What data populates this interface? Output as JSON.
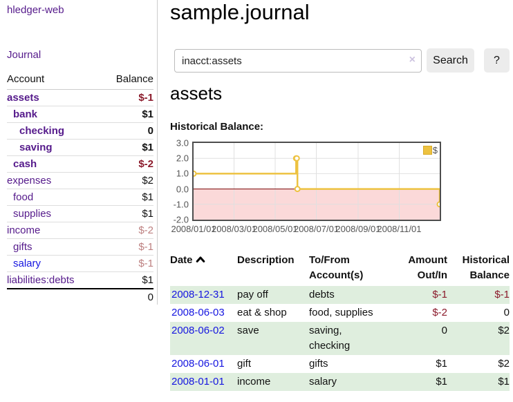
{
  "sidebar": {
    "app_title": "hledger-web",
    "journal_label": "Journal",
    "accounts_table": {
      "headers": {
        "account": "Account",
        "balance": "Balance"
      },
      "rows": [
        {
          "name": "assets",
          "balance": "$-1",
          "depth": 0,
          "bold": true,
          "balance_class": "neg-strong",
          "link_color": "purple"
        },
        {
          "name": "bank",
          "balance": "$1",
          "depth": 1,
          "bold": true,
          "balance_class": "",
          "link_color": "purple"
        },
        {
          "name": "checking",
          "balance": "0",
          "depth": 2,
          "bold": true,
          "balance_class": "",
          "link_color": "purple"
        },
        {
          "name": "saving",
          "balance": "$1",
          "depth": 2,
          "bold": true,
          "balance_class": "",
          "link_color": "purple"
        },
        {
          "name": "cash",
          "balance": "$-2",
          "depth": 1,
          "bold": true,
          "balance_class": "neg-strong",
          "link_color": "purple"
        },
        {
          "name": "expenses",
          "balance": "$2",
          "depth": 0,
          "bold": false,
          "balance_class": "",
          "link_color": "purple"
        },
        {
          "name": "food",
          "balance": "$1",
          "depth": 1,
          "bold": false,
          "balance_class": "",
          "link_color": "purple"
        },
        {
          "name": "supplies",
          "balance": "$1",
          "depth": 1,
          "bold": false,
          "balance_class": "",
          "link_color": "purple"
        },
        {
          "name": "income",
          "balance": "$-2",
          "depth": 0,
          "bold": false,
          "balance_class": "neg-muted",
          "link_color": "purple"
        },
        {
          "name": "gifts",
          "balance": "$-1",
          "depth": 1,
          "bold": false,
          "balance_class": "neg-muted",
          "link_color": "purple"
        },
        {
          "name": "salary",
          "balance": "$-1",
          "depth": 1,
          "bold": false,
          "balance_class": "neg-muted",
          "link_color": "blue"
        },
        {
          "name": "liabilities:debts",
          "balance": "$1",
          "depth": 0,
          "bold": false,
          "balance_class": "",
          "link_color": "purple"
        }
      ],
      "total": "0"
    }
  },
  "main": {
    "title": "sample.journal",
    "search": {
      "value": "inacct:assets",
      "clear_icon": "×",
      "button_label": "Search",
      "help_label": "?"
    },
    "account_heading": "assets",
    "chart_label": "Historical Balance:"
  },
  "chart_data": {
    "type": "line",
    "step": true,
    "title": "Historical Balance of assets",
    "series": [
      {
        "name": "$",
        "color": "#edc240",
        "points": [
          [
            "2008-01-01",
            1
          ],
          [
            "2008-06-01",
            2
          ],
          [
            "2008-06-02",
            2
          ],
          [
            "2008-06-03",
            0
          ],
          [
            "2008-12-31",
            -1
          ]
        ]
      }
    ],
    "x_domain": [
      "2008-01-01",
      "2008-12-31"
    ],
    "ylim": [
      -2,
      3
    ],
    "y_ticks": [
      "3.0",
      "2.0",
      "1.0",
      "0.0",
      "-1.0",
      "-2.0"
    ],
    "x_ticks": [
      "2008/01/01",
      "2008/03/01",
      "2008/05/01",
      "2008/07/01",
      "2008/09/01",
      "2008/11/01"
    ],
    "grid": true,
    "legend": {
      "label": "$",
      "position": "top-right"
    },
    "negative_region_color": "#fbd9d9",
    "zero_line_color": "#7a0000",
    "gridline_color": "#e0e0e0"
  },
  "register_table": {
    "headers": {
      "date": "Date",
      "description": "Description",
      "accounts": "To/From\nAccount(s)",
      "amount": "Amount\nOut/In",
      "balance": "Historical\nBalance"
    },
    "sort": {
      "column": "date",
      "direction": "ascending"
    },
    "rows": [
      {
        "date": "2008-12-31",
        "description": "pay off",
        "accounts": "debts",
        "amount": "$-1",
        "balance": "$-1",
        "amount_negative": true,
        "balance_negative": true,
        "shaded": true
      },
      {
        "date": "2008-06-03",
        "description": "eat & shop",
        "accounts": "food, supplies",
        "amount": "$-2",
        "balance": "0",
        "amount_negative": true,
        "balance_negative": false,
        "shaded": false
      },
      {
        "date": "2008-06-02",
        "description": "save",
        "accounts": "saving,\nchecking",
        "amount": "0",
        "balance": "$2",
        "amount_negative": false,
        "balance_negative": false,
        "shaded": true
      },
      {
        "date": "2008-06-01",
        "description": "gift",
        "accounts": "gifts",
        "amount": "$1",
        "balance": "$2",
        "amount_negative": false,
        "balance_negative": false,
        "shaded": false
      },
      {
        "date": "2008-01-01",
        "description": "income",
        "accounts": "salary",
        "amount": "$1",
        "balance": "$1",
        "amount_negative": false,
        "balance_negative": false,
        "shaded": true
      }
    ]
  }
}
